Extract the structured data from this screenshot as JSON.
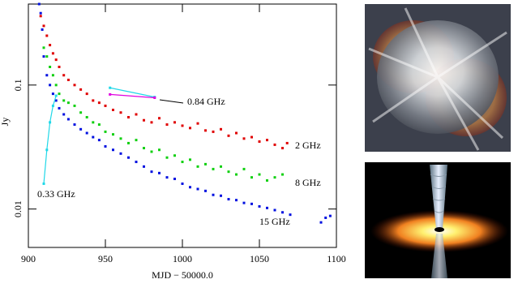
{
  "chart_data": {
    "type": "scatter",
    "log_y": true,
    "x_label": "MJD − 50000.0",
    "y_label": "Jy",
    "xlim": [
      900,
      1100
    ],
    "xticks": [
      900,
      950,
      1000,
      1050,
      1100
    ],
    "ylim": [
      0.0049,
      0.45
    ],
    "yticks": [
      0.01,
      0.1
    ],
    "series": [
      {
        "name": "2 GHz",
        "color": "#e00000",
        "style": "points",
        "x": [
          908,
          910,
          912,
          914,
          916,
          918,
          920,
          923,
          926,
          930,
          934,
          938,
          942,
          946,
          950,
          955,
          960,
          965,
          970,
          975,
          980,
          985,
          990,
          995,
          1000,
          1005,
          1010,
          1015,
          1020,
          1025,
          1030,
          1035,
          1040,
          1045,
          1050,
          1055,
          1060,
          1065,
          1068
        ],
        "values": [
          0.36,
          0.3,
          0.25,
          0.21,
          0.18,
          0.16,
          0.14,
          0.12,
          0.11,
          0.1,
          0.092,
          0.085,
          0.075,
          0.072,
          0.068,
          0.063,
          0.06,
          0.055,
          0.058,
          0.052,
          0.05,
          0.054,
          0.048,
          0.05,
          0.047,
          0.045,
          0.049,
          0.043,
          0.042,
          0.044,
          0.039,
          0.041,
          0.037,
          0.038,
          0.035,
          0.036,
          0.033,
          0.031,
          0.034
        ]
      },
      {
        "name": "8 GHz",
        "color": "#10d010",
        "style": "points",
        "x": [
          910,
          912,
          914,
          916,
          918,
          920,
          923,
          926,
          930,
          934,
          938,
          942,
          946,
          950,
          955,
          960,
          965,
          970,
          975,
          980,
          985,
          990,
          995,
          1000,
          1005,
          1010,
          1015,
          1020,
          1025,
          1030,
          1035,
          1040,
          1045,
          1050,
          1055,
          1060,
          1065
        ],
        "values": [
          0.2,
          0.17,
          0.14,
          0.12,
          0.1,
          0.085,
          0.075,
          0.072,
          0.068,
          0.06,
          0.055,
          0.05,
          0.048,
          0.042,
          0.04,
          0.037,
          0.034,
          0.036,
          0.031,
          0.029,
          0.03,
          0.026,
          0.027,
          0.024,
          0.025,
          0.022,
          0.023,
          0.021,
          0.022,
          0.02,
          0.019,
          0.021,
          0.018,
          0.019,
          0.017,
          0.018,
          0.019
        ]
      },
      {
        "name": "15 GHz",
        "color": "#0010e0",
        "style": "points",
        "x": [
          907,
          908,
          909,
          910,
          912,
          914,
          916,
          918,
          920,
          923,
          926,
          930,
          934,
          938,
          942,
          946,
          950,
          955,
          960,
          965,
          970,
          975,
          980,
          985,
          990,
          995,
          1000,
          1005,
          1010,
          1015,
          1020,
          1025,
          1030,
          1035,
          1040,
          1045,
          1050,
          1055,
          1060,
          1065,
          1070,
          1090,
          1093,
          1096
        ],
        "values": [
          0.45,
          0.38,
          0.28,
          0.17,
          0.12,
          0.1,
          0.085,
          0.075,
          0.065,
          0.058,
          0.053,
          0.048,
          0.044,
          0.041,
          0.038,
          0.036,
          0.032,
          0.03,
          0.028,
          0.026,
          0.024,
          0.022,
          0.02,
          0.0195,
          0.018,
          0.0175,
          0.016,
          0.015,
          0.0145,
          0.014,
          0.013,
          0.0128,
          0.012,
          0.0118,
          0.0112,
          0.011,
          0.0105,
          0.0102,
          0.0098,
          0.0094,
          0.009,
          0.0078,
          0.0085,
          0.0088
        ]
      },
      {
        "name": "0.33 GHz",
        "color": "#20d8e8",
        "style": "line",
        "x": [
          910,
          912,
          914,
          916,
          918
        ],
        "values": [
          0.016,
          0.03,
          0.05,
          0.068,
          0.082
        ]
      },
      {
        "name": "0.84 GHz",
        "color": "#20d8e8",
        "style": "line",
        "x": [
          953,
          982
        ],
        "values": [
          0.095,
          0.08
        ]
      },
      {
        "color": "#e000e0",
        "style": "line",
        "x": [
          953,
          982
        ],
        "values": [
          0.084,
          0.079
        ]
      }
    ]
  }
}
